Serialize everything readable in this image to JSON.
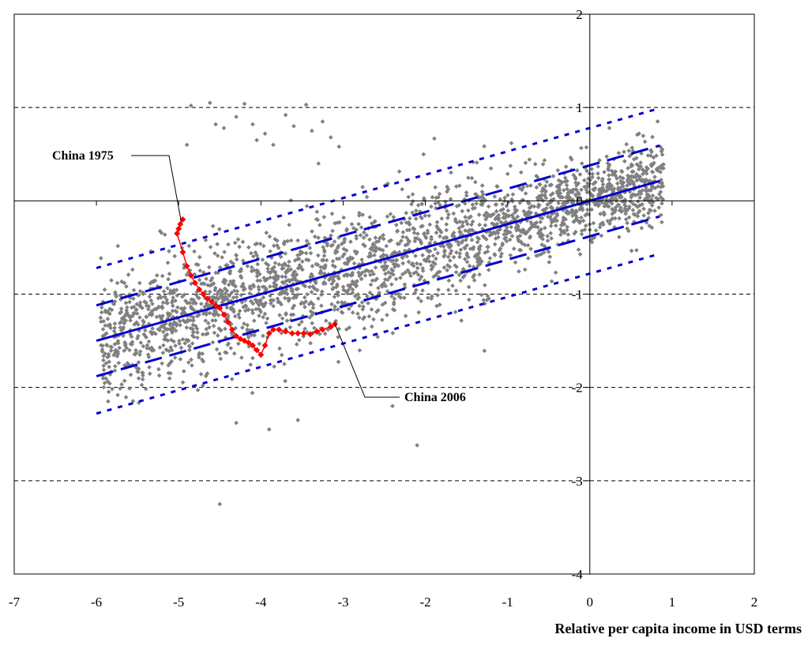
{
  "chart_data": {
    "type": "scatter",
    "title": "",
    "xlabel": "Relative per capita income in USD terms",
    "ylabel": "",
    "xlim": [
      -7,
      2
    ],
    "ylim": [
      -4,
      2
    ],
    "x_ticks": [
      -7,
      -6,
      -5,
      -4,
      -3,
      -2,
      -1,
      0,
      1,
      2
    ],
    "y_ticks": [
      -4,
      -3,
      -2,
      -1,
      0,
      1,
      2
    ],
    "grid": "horizontal dashed",
    "legend": "none",
    "colors": {
      "scatter": "#808080",
      "highlight": "#ff0000",
      "regression": "#0000cc",
      "gridline": "#000000"
    },
    "regression": {
      "x_range": [
        -6,
        0.85
      ],
      "slope": 0.25,
      "intercept": 0.0,
      "band_inner_offset": 0.38,
      "band_outer_offset": 0.78,
      "styles": {
        "fit": "solid",
        "inner": "long-dash",
        "outer": "short-dash"
      }
    },
    "background_cloud": {
      "x_range": [
        -5.95,
        0.9
      ],
      "trend_slope": 0.25,
      "spread": 0.32,
      "point_count_approx": 2500,
      "outliers": [
        [
          -4.85,
          1.02
        ],
        [
          -4.62,
          1.05
        ],
        [
          -4.55,
          0.82
        ],
        [
          -4.45,
          0.78
        ],
        [
          -4.3,
          0.9
        ],
        [
          -4.2,
          1.04
        ],
        [
          -4.1,
          0.82
        ],
        [
          -4.05,
          0.65
        ],
        [
          -3.95,
          0.72
        ],
        [
          -3.85,
          0.6
        ],
        [
          -3.7,
          0.92
        ],
        [
          -3.6,
          0.8
        ],
        [
          -3.45,
          1.03
        ],
        [
          -3.38,
          0.75
        ],
        [
          -3.25,
          0.85
        ],
        [
          -3.15,
          0.68
        ],
        [
          -3.05,
          0.58
        ],
        [
          -4.5,
          -3.25
        ],
        [
          -2.1,
          -2.62
        ],
        [
          -4.3,
          -2.38
        ],
        [
          -3.9,
          -2.45
        ],
        [
          -3.55,
          -2.35
        ],
        [
          -2.4,
          -2.2
        ],
        [
          -4.9,
          0.6
        ],
        [
          -3.3,
          0.4
        ]
      ]
    },
    "highlight_series": {
      "name": "China",
      "points": [
        [
          -4.95,
          -0.2
        ],
        [
          -4.98,
          -0.25
        ],
        [
          -5.0,
          -0.3
        ],
        [
          -5.02,
          -0.35
        ],
        [
          -4.95,
          -0.55
        ],
        [
          -4.9,
          -0.7
        ],
        [
          -4.85,
          -0.8
        ],
        [
          -4.8,
          -0.88
        ],
        [
          -4.75,
          -0.95
        ],
        [
          -4.7,
          -1.0
        ],
        [
          -4.65,
          -1.05
        ],
        [
          -4.6,
          -1.08
        ],
        [
          -4.55,
          -1.12
        ],
        [
          -4.5,
          -1.15
        ],
        [
          -4.45,
          -1.22
        ],
        [
          -4.4,
          -1.3
        ],
        [
          -4.35,
          -1.38
        ],
        [
          -4.3,
          -1.45
        ],
        [
          -4.25,
          -1.48
        ],
        [
          -4.2,
          -1.5
        ],
        [
          -4.15,
          -1.52
        ],
        [
          -4.1,
          -1.55
        ],
        [
          -4.05,
          -1.6
        ],
        [
          -4.0,
          -1.65
        ],
        [
          -3.95,
          -1.55
        ],
        [
          -3.9,
          -1.42
        ],
        [
          -3.85,
          -1.38
        ],
        [
          -3.78,
          -1.38
        ],
        [
          -3.7,
          -1.4
        ],
        [
          -3.62,
          -1.42
        ],
        [
          -3.55,
          -1.42
        ],
        [
          -3.48,
          -1.42
        ],
        [
          -3.4,
          -1.43
        ],
        [
          -3.32,
          -1.4
        ],
        [
          -3.25,
          -1.38
        ],
        [
          -3.15,
          -1.35
        ],
        [
          -3.1,
          -1.32
        ]
      ]
    },
    "annotations": [
      {
        "text": "China 1975",
        "anchor": [
          -4.97,
          -0.22
        ]
      },
      {
        "text": "China 2006",
        "anchor": [
          -3.1,
          -1.32
        ]
      }
    ]
  }
}
